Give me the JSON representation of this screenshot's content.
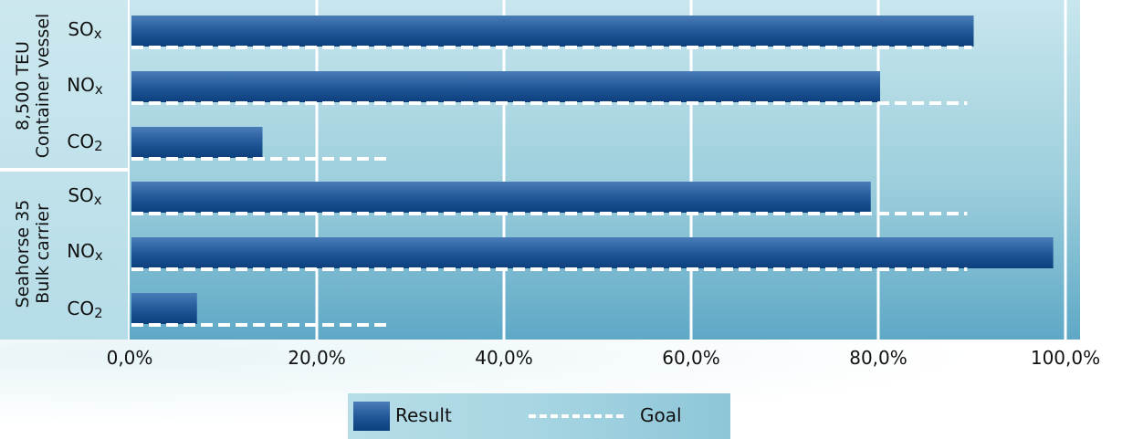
{
  "chart_data": {
    "type": "bar",
    "orientation": "horizontal",
    "groups": [
      {
        "label_line1": "8,500 TEU",
        "label_line2": "Container vessel",
        "categories": [
          {
            "base": "SO",
            "sub": "x",
            "result": 90.0,
            "goal": 90.0
          },
          {
            "base": "NO",
            "sub": "x",
            "result": 80.0,
            "goal": 89.5
          },
          {
            "base": "CO",
            "sub": "2",
            "result": 14.0,
            "goal": 28.0
          }
        ]
      },
      {
        "label_line1": "Seahorse 35",
        "label_line2": "Bulk carrier",
        "categories": [
          {
            "base": "SO",
            "sub": "x",
            "result": 79.0,
            "goal": 89.5
          },
          {
            "base": "NO",
            "sub": "x",
            "result": 98.5,
            "goal": 89.5
          },
          {
            "base": "CO",
            "sub": "2",
            "result": 7.0,
            "goal": 28.0
          }
        ]
      }
    ],
    "series": [
      {
        "name": "Result",
        "key": "result"
      },
      {
        "name": "Goal",
        "key": "goal"
      }
    ],
    "xlim": [
      0,
      100
    ],
    "xticks": [
      "0,0%",
      "20,0%",
      "40,0%",
      "60,0%",
      "80,0%",
      "100,0%"
    ],
    "grid": "vertical",
    "legend": "bottom-center"
  },
  "legend": {
    "result_label": "Result",
    "goal_label": "Goal"
  },
  "colors": {
    "bar_dark": "#0c3f7c",
    "bar_mid": "#1f5596",
    "bar_light": "#4a7db8",
    "goal_line": "#ffffff",
    "grid": "#ffffff"
  }
}
